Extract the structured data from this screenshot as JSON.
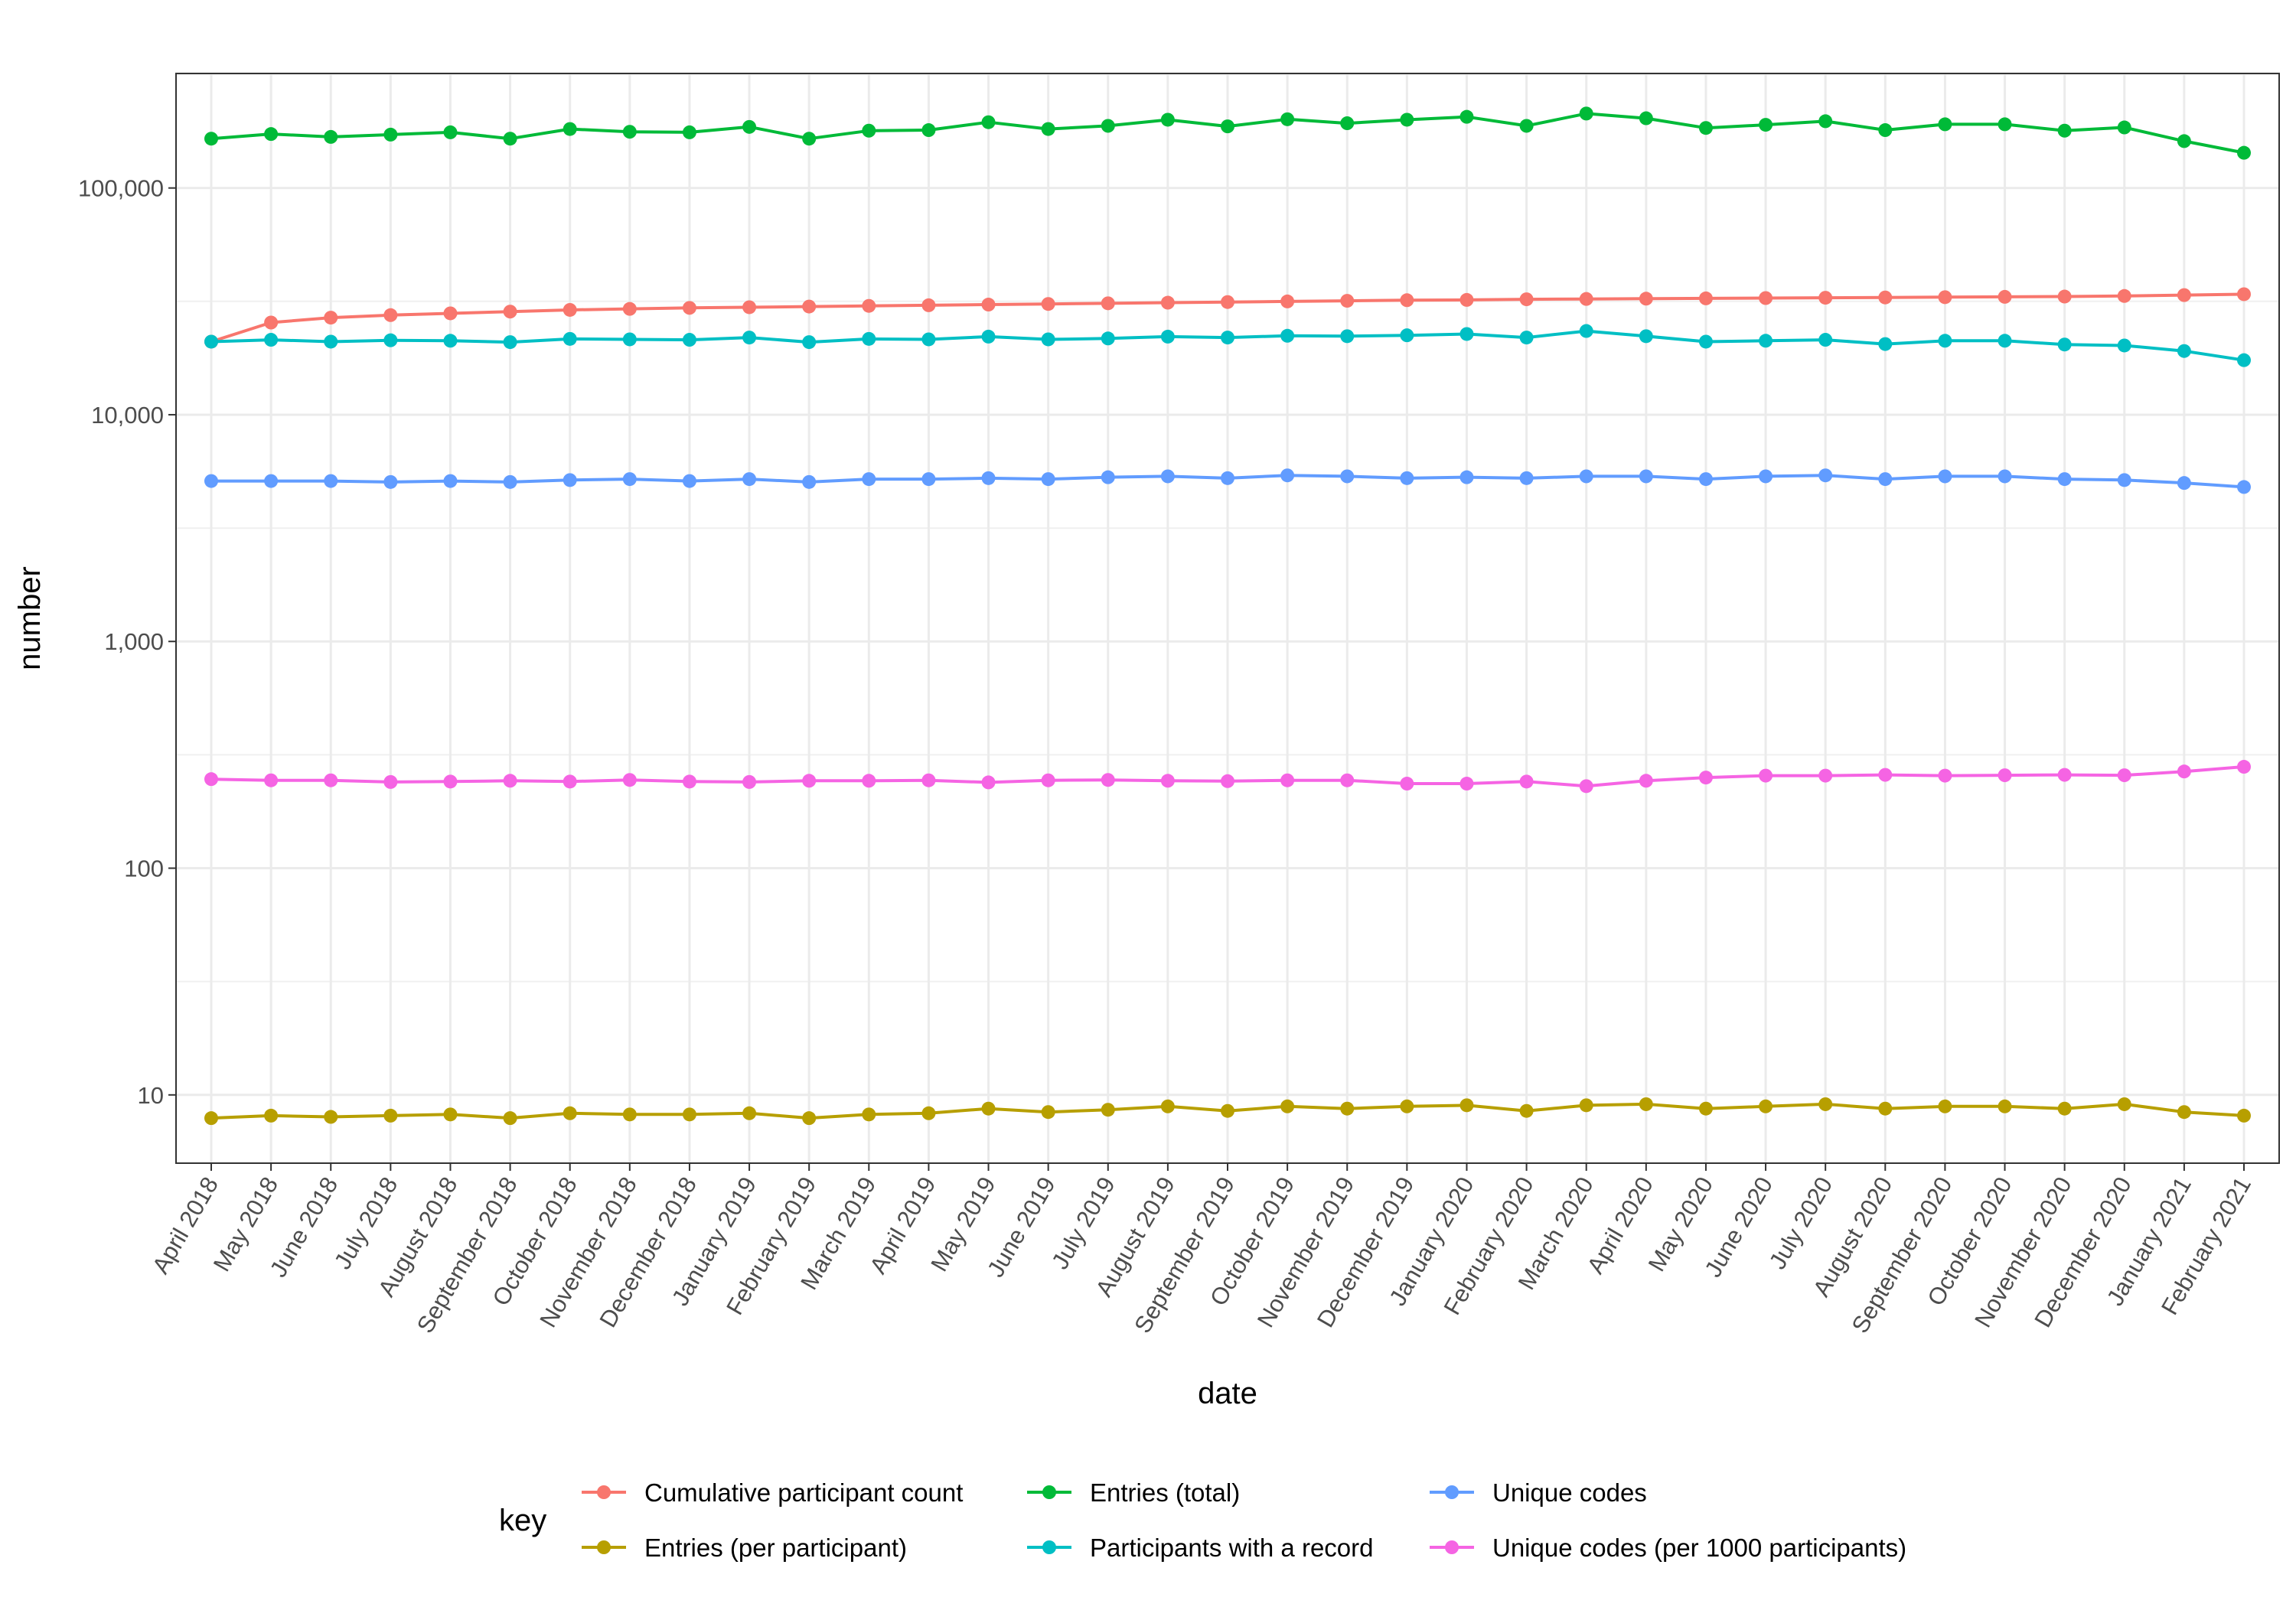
{
  "chart_data": {
    "type": "line",
    "xlabel": "date",
    "ylabel": "number",
    "y_scale": "log10",
    "ylim": [
      5,
      320000
    ],
    "y_ticks": [
      {
        "value": 10,
        "label": "10"
      },
      {
        "value": 100,
        "label": "100"
      },
      {
        "value": 1000,
        "label": "1,000"
      },
      {
        "value": 10000,
        "label": "10,000"
      },
      {
        "value": 100000,
        "label": "100,000"
      }
    ],
    "grid": true,
    "legend_title": "key",
    "legend_position": "bottom",
    "categories": [
      "April 2018",
      "May 2018",
      "June 2018",
      "July 2018",
      "August 2018",
      "September 2018",
      "October 2018",
      "November 2018",
      "December 2018",
      "January 2019",
      "February 2019",
      "March 2019",
      "April 2019",
      "May 2019",
      "June 2019",
      "July 2019",
      "August 2019",
      "September 2019",
      "October 2019",
      "November 2019",
      "December 2019",
      "January 2020",
      "February 2020",
      "March 2020",
      "April 2020",
      "May 2020",
      "June 2020",
      "July 2020",
      "August 2020",
      "September 2020",
      "October 2020",
      "November 2020",
      "December 2020",
      "January 2021",
      "February 2021"
    ],
    "series": [
      {
        "name": "Cumulative participant count",
        "color": "#F8766D",
        "values": [
          21000,
          25500,
          26800,
          27500,
          28000,
          28500,
          29000,
          29300,
          29600,
          29800,
          30000,
          30200,
          30400,
          30600,
          30800,
          31000,
          31200,
          31400,
          31600,
          31800,
          32000,
          32100,
          32300,
          32400,
          32500,
          32600,
          32700,
          32800,
          32900,
          33000,
          33100,
          33200,
          33400,
          33700,
          34000
        ]
      },
      {
        "name": "Entries (per participant)",
        "color": "#B79F00",
        "values": [
          7.9,
          8.1,
          8.0,
          8.1,
          8.2,
          7.9,
          8.3,
          8.2,
          8.2,
          8.3,
          7.9,
          8.2,
          8.3,
          8.7,
          8.4,
          8.6,
          8.9,
          8.5,
          8.9,
          8.7,
          8.9,
          9.0,
          8.5,
          9.0,
          9.1,
          8.7,
          8.9,
          9.1,
          8.7,
          8.9,
          8.9,
          8.7,
          9.1,
          8.4,
          8.1
        ]
      },
      {
        "name": "Entries (total)",
        "color": "#00BA38",
        "values": [
          165000,
          173000,
          168000,
          172000,
          176000,
          165000,
          182000,
          177000,
          176000,
          186000,
          165000,
          179000,
          180000,
          195000,
          182000,
          188000,
          200000,
          187000,
          201000,
          193000,
          200000,
          206000,
          188000,
          213000,
          203000,
          184000,
          190000,
          197000,
          180000,
          191000,
          191000,
          179000,
          185000,
          161000,
          143000
        ]
      },
      {
        "name": "Participants with a record",
        "color": "#00BFC4",
        "values": [
          21000,
          21400,
          21000,
          21300,
          21200,
          20900,
          21600,
          21500,
          21400,
          21900,
          20900,
          21600,
          21500,
          22100,
          21500,
          21700,
          22100,
          21900,
          22300,
          22200,
          22400,
          22700,
          21900,
          23400,
          22200,
          21000,
          21200,
          21400,
          20500,
          21200,
          21200,
          20400,
          20200,
          19100,
          17400
        ]
      },
      {
        "name": "Unique codes",
        "color": "#619CFF",
        "values": [
          5100,
          5100,
          5100,
          5050,
          5100,
          5050,
          5150,
          5200,
          5100,
          5200,
          5050,
          5200,
          5200,
          5250,
          5200,
          5300,
          5350,
          5250,
          5400,
          5350,
          5250,
          5300,
          5250,
          5350,
          5350,
          5200,
          5350,
          5400,
          5200,
          5350,
          5350,
          5200,
          5150,
          5000,
          4800
        ]
      },
      {
        "name": "Unique codes (per 1000 participants)",
        "color": "#F564E3",
        "values": [
          247,
          244,
          244,
          240,
          241,
          243,
          241,
          245,
          241,
          240,
          243,
          243,
          244,
          239,
          244,
          245,
          243,
          242,
          244,
          244,
          236,
          236,
          241,
          230,
          243,
          251,
          256,
          256,
          258,
          256,
          257,
          258,
          257,
          267,
          280
        ]
      }
    ]
  }
}
